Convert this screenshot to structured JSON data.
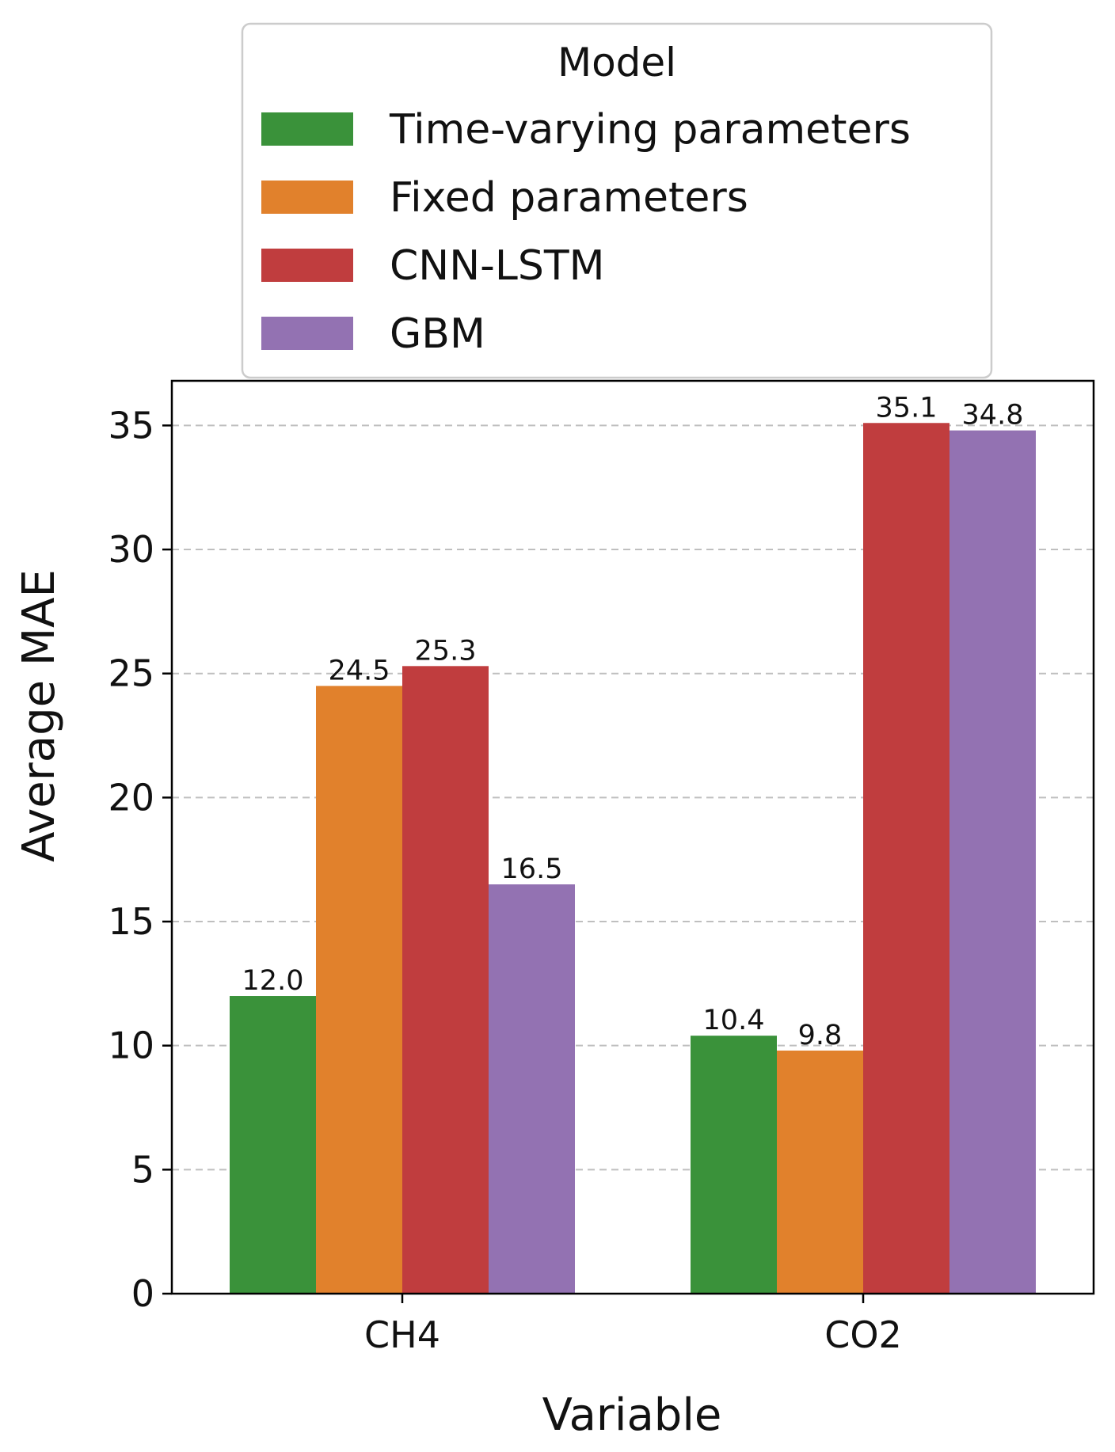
{
  "chart_data": {
    "type": "bar",
    "title": "",
    "xlabel": "Variable",
    "ylabel": "Average MAE",
    "categories": [
      "CH4",
      "CO2"
    ],
    "ylim": [
      0,
      36.8
    ],
    "yticks": [
      0,
      5,
      10,
      15,
      20,
      25,
      30,
      35
    ],
    "grid": "y-dashed",
    "legend": {
      "title": "Model",
      "placement": "top-center-above"
    },
    "series": [
      {
        "name": "Time-varying parameters",
        "color": "#3a923a",
        "values": [
          12.0,
          10.4
        ],
        "labels": [
          "12.0",
          "10.4"
        ]
      },
      {
        "name": "Fixed parameters",
        "color": "#e1812c",
        "values": [
          24.5,
          9.8
        ],
        "labels": [
          "24.5",
          "9.8"
        ]
      },
      {
        "name": "CNN-LSTM",
        "color": "#c03d3e",
        "values": [
          25.3,
          35.1
        ],
        "labels": [
          "25.3",
          "35.1"
        ]
      },
      {
        "name": "GBM",
        "color": "#9372b2",
        "values": [
          16.5,
          34.8
        ],
        "labels": [
          "16.5",
          "34.8"
        ]
      }
    ]
  }
}
